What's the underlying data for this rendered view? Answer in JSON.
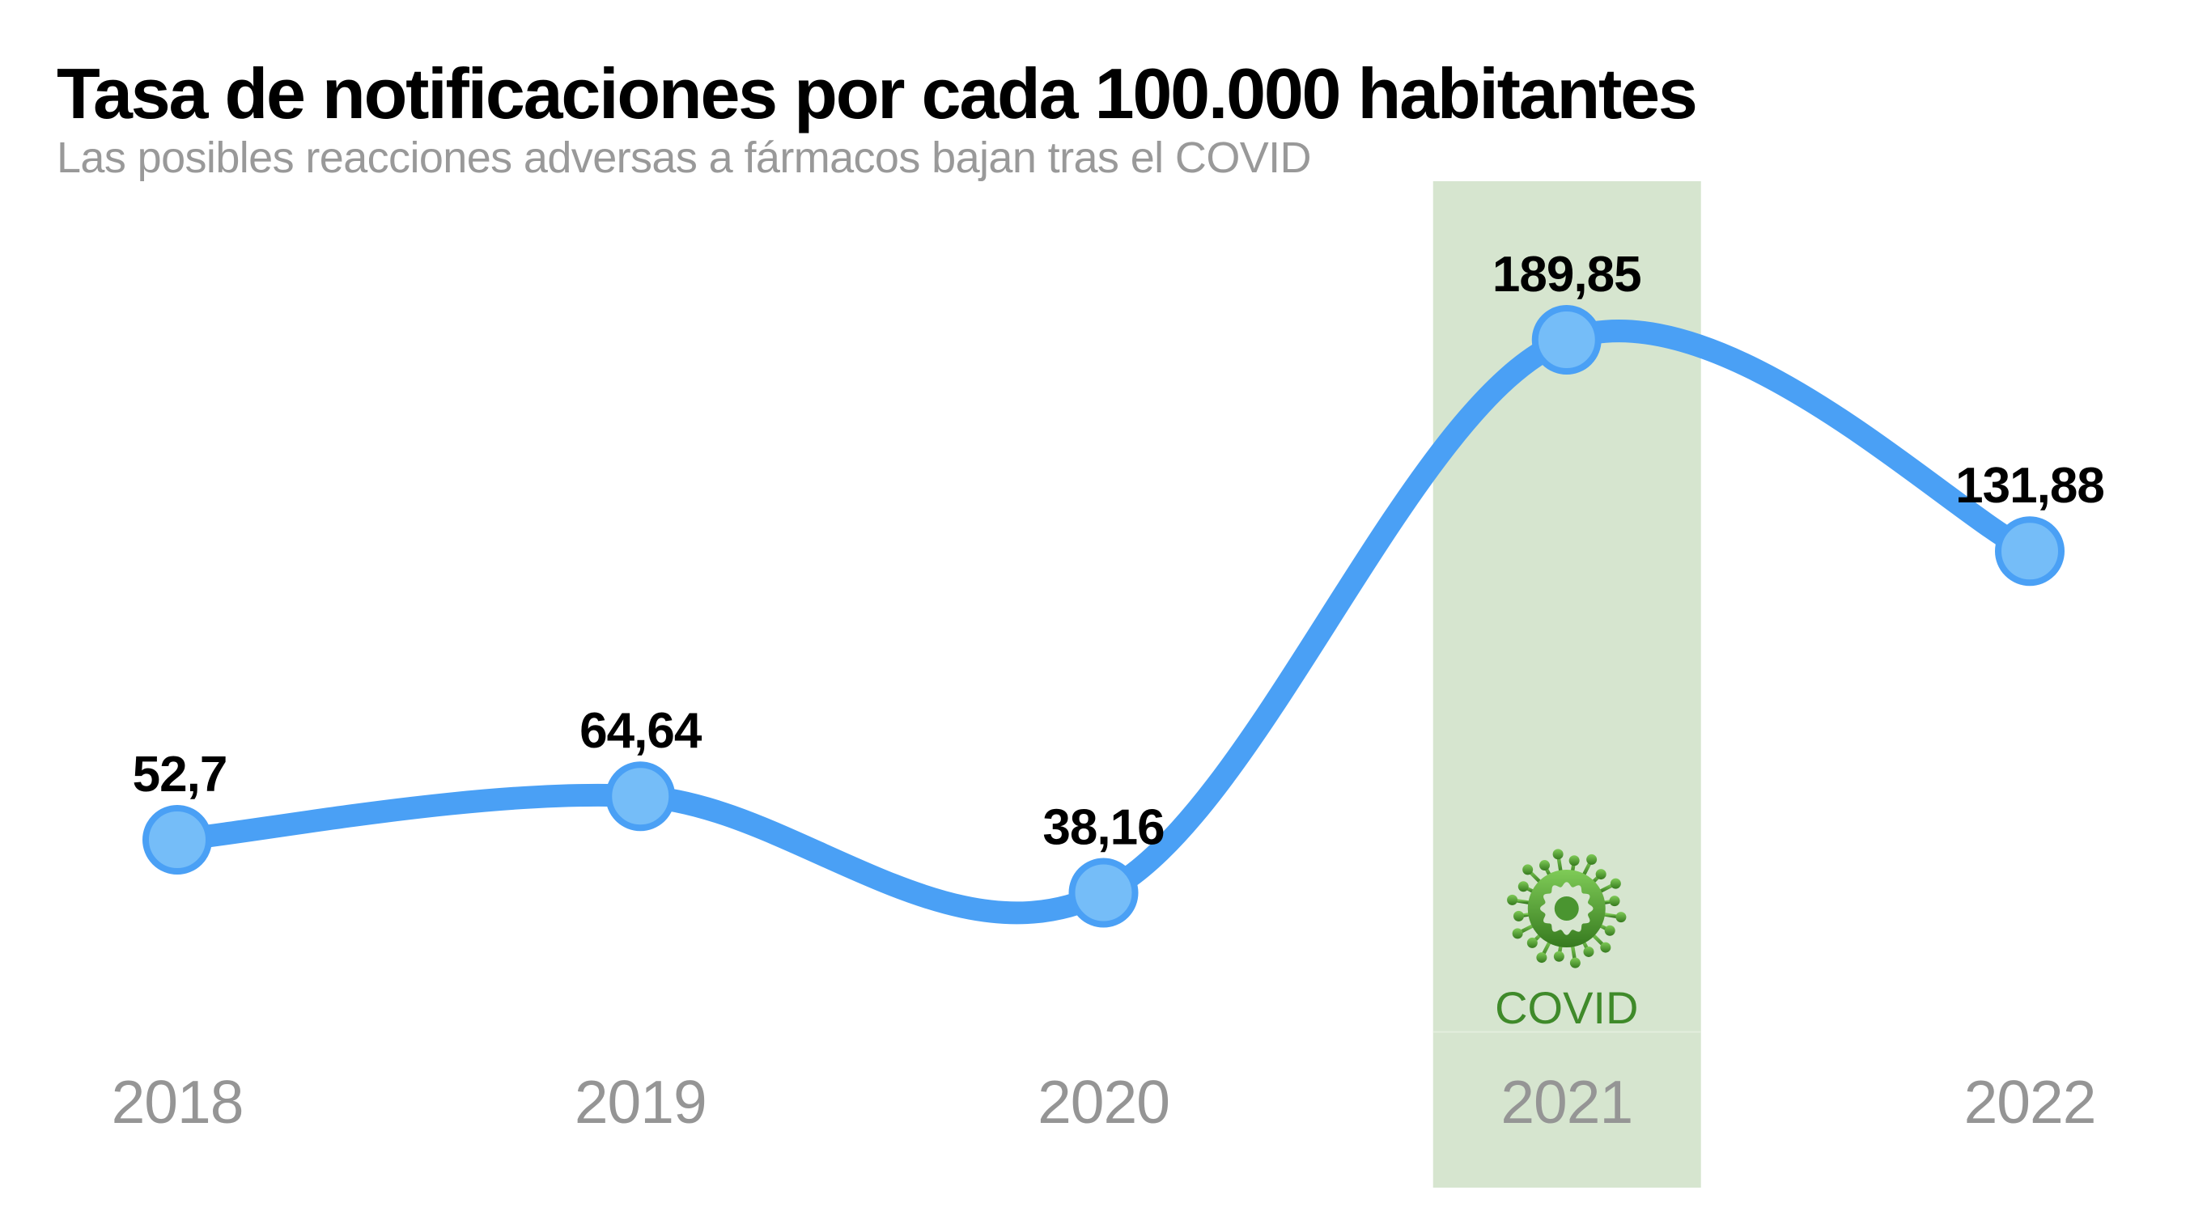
{
  "title": "Tasa de notificaciones por cada 100.000 habitantes",
  "subtitle": "Las posibles reacciones adversas a fármacos bajan tras el COVID",
  "highlight": {
    "category": "2021",
    "label": "COVID",
    "icon": "virus-icon",
    "band_color": "#d6e5cf",
    "label_color": "#3f8a2a"
  },
  "colors": {
    "line": "#4aa0f5",
    "marker_fill": "#75bdf8",
    "marker_stroke": "#4aa0f5",
    "axis_label": "#959595",
    "value_label": "#000000"
  },
  "chart_data": {
    "type": "line",
    "title": "Tasa de notificaciones por cada 100.000 habitantes",
    "subtitle": "Las posibles reacciones adversas a fármacos bajan tras el COVID",
    "categories": [
      "2018",
      "2019",
      "2020",
      "2021",
      "2022"
    ],
    "series": [
      {
        "name": "Tasa de notificaciones",
        "values": [
          52.7,
          64.64,
          38.16,
          189.85,
          131.88
        ],
        "labels": [
          "52,7",
          "64,64",
          "38,16",
          "189,85",
          "131,88"
        ]
      }
    ],
    "xlabel": "",
    "ylabel": "",
    "ylim": [
      0,
      200
    ],
    "grid": false,
    "legend": "none",
    "smooth": true,
    "annotations": [
      {
        "category": "2021",
        "text": "COVID",
        "type": "highlight-band"
      }
    ]
  }
}
